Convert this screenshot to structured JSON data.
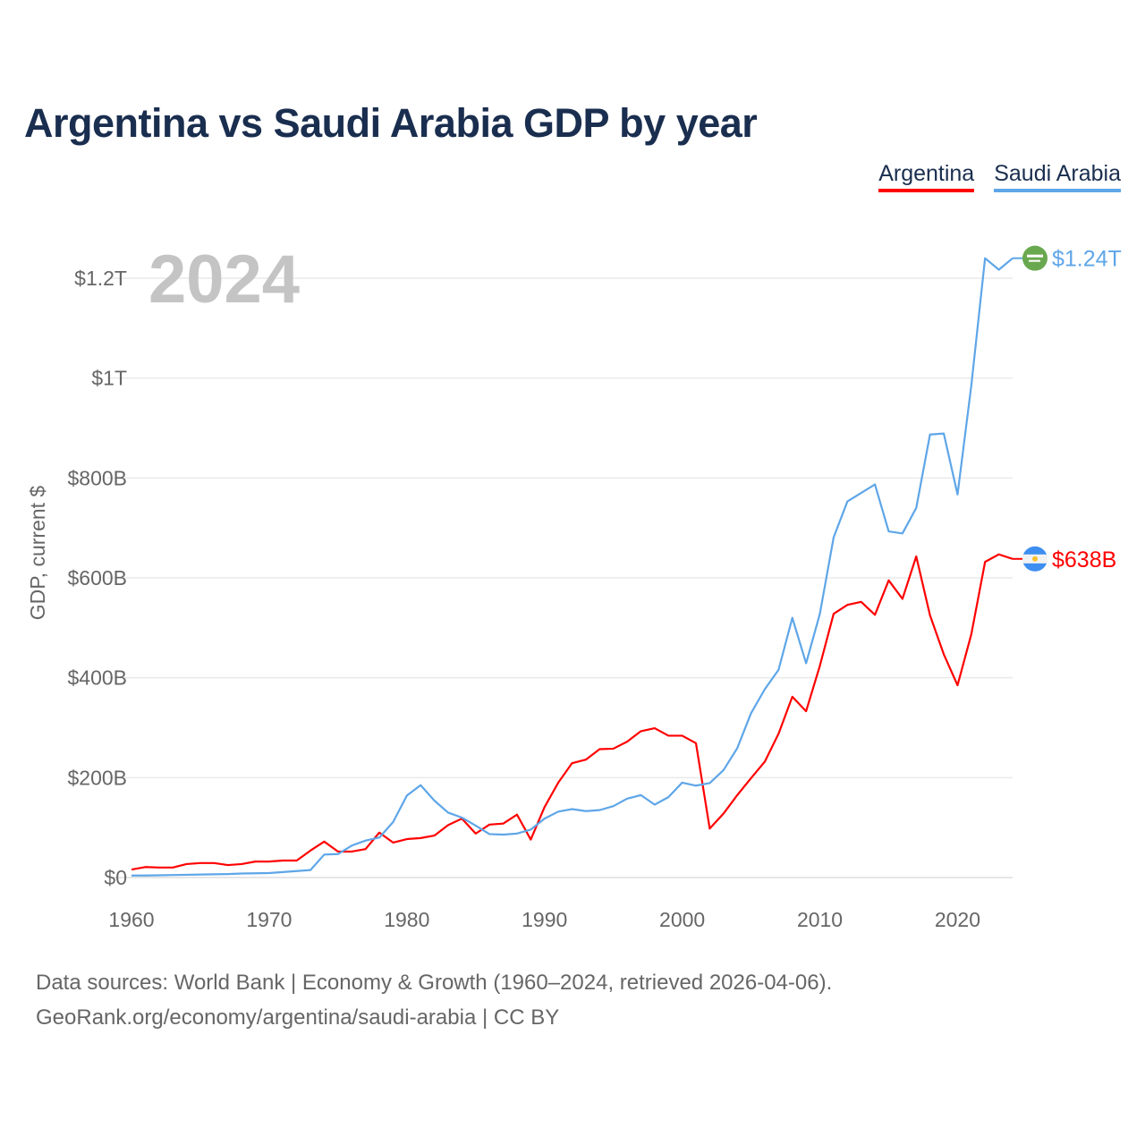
{
  "title": "Argentina vs Saudi Arabia GDP by year",
  "year_label": "2024",
  "footer": {
    "line1": "Data sources: World Bank | Economy & Growth (1960–2024, retrieved 2026-04-06).",
    "line2": "GeoRank.org/economy/argentina/saudi-arabia | CC BY"
  },
  "chart_data": {
    "type": "line",
    "title": "Argentina vs Saudi Arabia GDP by year",
    "xlabel": "",
    "ylabel": "GDP, current $",
    "xlim": [
      1960,
      2024
    ],
    "ylim": [
      0,
      1200
    ],
    "units": "billions USD",
    "x_ticks": [
      1960,
      1970,
      1980,
      1990,
      2000,
      2010,
      2020
    ],
    "x_tick_labels": [
      "1960",
      "1970",
      "1980",
      "1990",
      "2000",
      "2010",
      "2020"
    ],
    "y_ticks": [
      0,
      200,
      400,
      600,
      800,
      1000,
      1200
    ],
    "y_tick_labels": [
      "$0",
      "$200B",
      "$400B",
      "$600B",
      "$800B",
      "$1T",
      "$1.2T"
    ],
    "grid": true,
    "legend_position": "top-right",
    "series": [
      {
        "name": "Argentina",
        "color": "#ff0000",
        "end_label": "$638B",
        "flag_icon": "argentina-flag",
        "values": [
          16,
          21,
          20,
          20,
          27,
          29,
          29,
          25,
          27,
          32,
          32,
          34,
          34,
          54,
          72,
          52,
          52,
          57,
          90,
          70,
          77,
          79,
          84,
          105,
          118,
          88,
          106,
          108,
          126,
          76,
          141,
          190,
          229,
          236,
          257,
          258,
          272,
          293,
          299,
          284,
          284,
          269,
          98,
          128,
          165,
          199,
          232,
          288,
          362,
          333,
          424,
          528,
          546,
          552,
          526,
          595,
          558,
          643,
          525,
          447,
          385,
          487,
          632,
          647,
          638
        ]
      },
      {
        "name": "Saudi Arabia",
        "color": "#5ea6e8",
        "end_label": "$1.24T",
        "flag_icon": "saudi-arabia-flag",
        "values": [
          4,
          4,
          4.5,
          5,
          5.5,
          6,
          6.5,
          7,
          8,
          8.5,
          9,
          11,
          13,
          15,
          46,
          47,
          64,
          74,
          80,
          111,
          164,
          185,
          154,
          130,
          120,
          104,
          87,
          86,
          88,
          96,
          118,
          132,
          137,
          133,
          135,
          143,
          158,
          165,
          146,
          161,
          190,
          184,
          189,
          215,
          259,
          329,
          377,
          416,
          520,
          429,
          528,
          681,
          753,
          770,
          787,
          693,
          689,
          740,
          887,
          889,
          767,
          985,
          1240,
          1217,
          1240
        ]
      }
    ]
  }
}
